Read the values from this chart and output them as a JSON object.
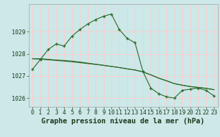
{
  "title": "Graphe pression niveau de la mer (hPa)",
  "bg_color": "#cce8e8",
  "grid_color": "#ffffff",
  "line_color": "#2d6b2d",
  "hours": [
    0,
    1,
    2,
    3,
    4,
    5,
    6,
    7,
    8,
    9,
    10,
    11,
    12,
    13,
    14,
    15,
    16,
    17,
    18,
    19,
    20,
    21,
    22,
    23
  ],
  "x_labels": [
    "0",
    "1",
    "2",
    "3",
    "4",
    "5",
    "6",
    "7",
    "8",
    "9",
    "10",
    "11",
    "12",
    "13",
    "14",
    "15",
    "16",
    "17",
    "18",
    "19",
    "20",
    "21",
    "22",
    "23"
  ],
  "series_main": [
    1027.3,
    1027.75,
    1028.2,
    1028.45,
    1028.35,
    1028.8,
    1029.1,
    1029.35,
    1029.55,
    1029.7,
    1029.8,
    1029.1,
    1028.7,
    1028.5,
    1027.2,
    1026.45,
    1026.2,
    1026.05,
    1026.0,
    1026.35,
    1026.4,
    1026.45,
    1026.35,
    1026.1
  ],
  "series_flat1": [
    1027.78,
    1027.78,
    1027.75,
    1027.72,
    1027.7,
    1027.67,
    1027.63,
    1027.58,
    1027.53,
    1027.48,
    1027.43,
    1027.38,
    1027.32,
    1027.27,
    1027.18,
    1027.05,
    1026.9,
    1026.78,
    1026.65,
    1026.58,
    1026.52,
    1026.48,
    1026.44,
    1026.38
  ],
  "series_flat2": [
    1027.78,
    1027.76,
    1027.73,
    1027.7,
    1027.67,
    1027.64,
    1027.6,
    1027.56,
    1027.52,
    1027.48,
    1027.43,
    1027.38,
    1027.32,
    1027.27,
    1027.18,
    1027.05,
    1026.9,
    1026.78,
    1026.65,
    1026.58,
    1026.52,
    1026.48,
    1026.44,
    1026.38
  ],
  "ylim": [
    1025.6,
    1030.25
  ],
  "yticks": [
    1026,
    1027,
    1028,
    1029
  ],
  "title_fontsize": 7.5,
  "tick_fontsize": 6
}
